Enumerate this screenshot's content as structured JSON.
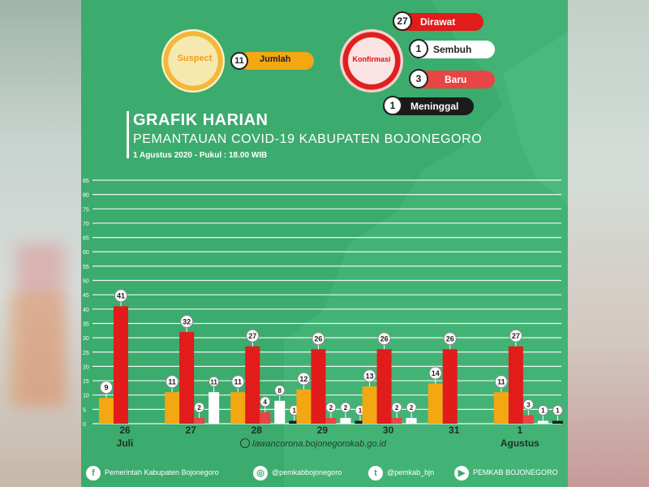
{
  "header": {
    "suspect_label": "Suspect",
    "suspect_value": "11",
    "suspect_pill": "Jumlah",
    "konfirmasi_label": "Konfirmasi",
    "dirawat_value": "27",
    "dirawat_label": "Dirawat",
    "sembuh_value": "1",
    "sembuh_label": "Sembuh",
    "baru_value": "3",
    "baru_label": "Baru",
    "meninggal_value": "1",
    "meninggal_label": "Meninggal"
  },
  "titles": {
    "line1": "GRAFIK HARIAN",
    "line2": "PEMANTAUAN COVID-19 KABUPATEN BOJONEGORO",
    "line3": "1 Agustus 2020 - Pukul : 18.00 WIB"
  },
  "source": "lawancorona.bojonegorokab.go.id",
  "footer": {
    "facebook": "Pemerintah Kabupaten Bojonegoro",
    "instagram": "@pemkabbojonegoro",
    "twitter": "@pemkab_bjn",
    "youtube": "PEMKAB BOJONEGORO"
  },
  "colors": {
    "background": "#3cab6e",
    "suspect": "#f3a712",
    "dirawat": "#e21b1b",
    "baru": "#e84545",
    "sembuh": "#ffffff",
    "meninggal": "#1b1b1b"
  },
  "icons": [
    "facebook-icon",
    "instagram-icon",
    "twitter-icon",
    "youtube-icon",
    "globe-icon"
  ],
  "chart_data": {
    "type": "bar",
    "categories": [
      "26",
      "27",
      "28",
      "29",
      "30",
      "31",
      "1"
    ],
    "month_labels": [
      {
        "at": "26",
        "label": "Juli"
      },
      {
        "at": "1",
        "label": "Agustus"
      }
    ],
    "ylim": [
      0,
      85
    ],
    "yticks": [
      0,
      5,
      10,
      15,
      20,
      25,
      30,
      35,
      40,
      45,
      50,
      55,
      60,
      65,
      70,
      75,
      80,
      85
    ],
    "grid": true,
    "series": [
      {
        "color": "#f3a712",
        "values": [
          9,
          11,
          11,
          12,
          13,
          14,
          11
        ]
      },
      {
        "color": "#e21b1b",
        "values": [
          41,
          32,
          27,
          26,
          26,
          26,
          27
        ]
      },
      {
        "color": "#e84545",
        "values": [
          null,
          2,
          4,
          2,
          2,
          null,
          3
        ]
      },
      {
        "color": "#ffffff",
        "values": [
          null,
          11,
          8,
          2,
          2,
          null,
          1
        ]
      },
      {
        "color": "#1b1b1b",
        "values": [
          null,
          null,
          1,
          1,
          null,
          null,
          1
        ]
      }
    ]
  }
}
